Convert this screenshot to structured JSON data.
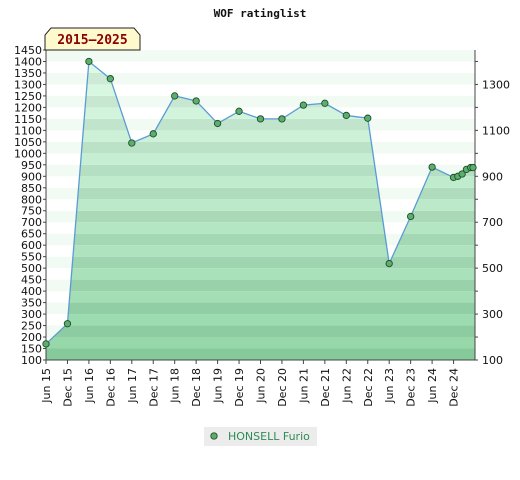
{
  "chart_data": {
    "type": "area",
    "title": "WOF ratinglist",
    "badge": "2015–2025",
    "x": [
      "Jun 15",
      "Dec 15",
      "Jun 16",
      "Dec 16",
      "Jun 17",
      "Dec 17",
      "Jun 18",
      "Dec 18",
      "Jun 19",
      "Dec 19",
      "Jun 20",
      "Dec 20",
      "Jun 21",
      "Dec 21",
      "Jun 22",
      "Dec 22",
      "Jun 23",
      "Dec 23",
      "Jun 24",
      "Dec 24"
    ],
    "series": [
      {
        "name": "HONSELL Furio",
        "points": [
          {
            "t": 0.0,
            "y": 170
          },
          {
            "t": 1.0,
            "y": 258
          },
          {
            "t": 2.0,
            "y": 1400
          },
          {
            "t": 3.0,
            "y": 1325
          },
          {
            "t": 4.0,
            "y": 1045
          },
          {
            "t": 5.0,
            "y": 1085
          },
          {
            "t": 6.0,
            "y": 1250
          },
          {
            "t": 7.0,
            "y": 1228
          },
          {
            "t": 8.0,
            "y": 1130
          },
          {
            "t": 9.0,
            "y": 1183
          },
          {
            "t": 10.0,
            "y": 1150
          },
          {
            "t": 11.0,
            "y": 1150
          },
          {
            "t": 12.0,
            "y": 1210
          },
          {
            "t": 13.0,
            "y": 1218
          },
          {
            "t": 14.0,
            "y": 1165
          },
          {
            "t": 15.0,
            "y": 1153
          },
          {
            "t": 16.0,
            "y": 520
          },
          {
            "t": 17.0,
            "y": 725
          },
          {
            "t": 18.0,
            "y": 940
          },
          {
            "t": 19.0,
            "y": 895
          },
          {
            "t": 19.2,
            "y": 900
          },
          {
            "t": 19.4,
            "y": 910
          },
          {
            "t": 19.6,
            "y": 930
          },
          {
            "t": 19.8,
            "y": 938
          },
          {
            "t": 20.0,
            "y": 938
          }
        ]
      }
    ],
    "ylim": [
      100,
      1450
    ],
    "yticks_left": [
      100,
      150,
      200,
      250,
      300,
      350,
      400,
      450,
      500,
      550,
      600,
      650,
      700,
      750,
      800,
      850,
      900,
      950,
      1000,
      1050,
      1100,
      1150,
      1200,
      1250,
      1300,
      1350,
      1400,
      1450
    ],
    "yticks_right": [
      100,
      300,
      500,
      700,
      900,
      1100,
      1300
    ],
    "legend_position": "bottom-center",
    "colors": {
      "fill_light": "#e6f5ea",
      "fill_dark": "#86c99b",
      "line": "#5a9bd5",
      "marker": "#5cae6d",
      "marker_stroke": "#1f4d2a",
      "badge_bg": "#fffacd",
      "legend_text": "#2e8b57"
    }
  }
}
